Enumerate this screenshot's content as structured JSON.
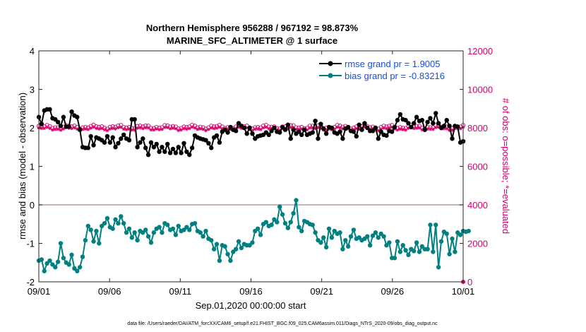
{
  "chart_data": {
    "type": "line",
    "title_line1": "Northern Hemisphere 956288 / 967192 = 98.873%",
    "title_line2": "MARINE_SFC_ALTIMETER @ 1 surface",
    "xlabel": "Sep.01,2020 00:00:00 start",
    "ylabel_left": "rmse and bias (model - observation)",
    "ylabel_right": "# of obs: o=possible; *=evaluated",
    "x_ticks": [
      "09/01",
      "09/06",
      "09/11",
      "09/16",
      "09/21",
      "09/26",
      "10/01"
    ],
    "x_range": [
      0,
      30
    ],
    "y_left_ticks": [
      "-2",
      "-1",
      "0",
      "1",
      "2",
      "3",
      "4"
    ],
    "y_left_range": [
      -2,
      4
    ],
    "y_right_ticks": [
      "0",
      "2000",
      "4000",
      "6000",
      "8000",
      "10000",
      "12000"
    ],
    "y_right_range": [
      0,
      12000
    ],
    "legend": [
      "rmse grand pr = 1.9005",
      "bias grand pr = -0.83216"
    ],
    "colors": {
      "rmse": "#000000",
      "bias": "#008080",
      "obs": "#d6006b",
      "zero": "#b09a9a"
    },
    "rmse": [
      2.28,
      2.1,
      2.45,
      2.48,
      2.48,
      2.25,
      2.22,
      2.15,
      2.05,
      2.28,
      2.03,
      2.03,
      2.42,
      2.32,
      2.28,
      1.95,
      1.5,
      1.48,
      1.48,
      1.78,
      1.55,
      1.75,
      1.72,
      1.68,
      1.62,
      1.78,
      1.62,
      1.75,
      1.5,
      1.6,
      1.72,
      1.82,
      1.72,
      1.68,
      2.22,
      2.22,
      1.5,
      1.62,
      1.72,
      1.48,
      1.3,
      1.62,
      1.5,
      1.58,
      1.38,
      1.5,
      1.38,
      1.58,
      1.35,
      1.45,
      1.35,
      1.5,
      1.35,
      1.6,
      1.38,
      1.3,
      1.48,
      1.8,
      1.75,
      1.72,
      1.7,
      1.68,
      1.6,
      1.48,
      1.75,
      1.8,
      1.62,
      1.9,
      1.95,
      1.88,
      2.02,
      1.95,
      1.92,
      2.12,
      2.05,
      2.0,
      1.85,
      2.0,
      1.85,
      1.72,
      1.78,
      1.8,
      1.82,
      1.88,
      1.82,
      1.92,
      2.0,
      1.9,
      1.88,
      2.02,
      1.95,
      2.08,
      1.72,
      1.95,
      1.85,
      1.9,
      1.82,
      1.95,
      1.82,
      1.85,
      1.88,
      2.18,
      1.72,
      2.1,
      1.98,
      1.85,
      2.02,
      2.0,
      1.88,
      1.85,
      1.9,
      1.72,
      1.98,
      2.02,
      1.92,
      1.9,
      1.78,
      2.08,
      1.95,
      2.12,
      2.0,
      1.92,
      1.92,
      2.0,
      1.72,
      1.9,
      1.82,
      1.8,
      1.92,
      1.9,
      2.02,
      2.2,
      2.35,
      2.22,
      2.2,
      2.12,
      2.02,
      2.12,
      2.28,
      2.18,
      2.2,
      1.95,
      2.15,
      2.25,
      2.12,
      2.38,
      2.12,
      2.0,
      2.05,
      2.2,
      2.05,
      1.72,
      2.05,
      2.03,
      1.62,
      1.65
    ],
    "bias": [
      -1.45,
      -1.42,
      -1.72,
      -1.52,
      -1.45,
      -1.55,
      -1.62,
      -1.48,
      -1.0,
      -1.38,
      -1.5,
      -1.55,
      -1.3,
      -1.65,
      -1.72,
      -1.62,
      -1.35,
      -0.92,
      -0.55,
      -0.65,
      -0.95,
      -0.68,
      -1.0,
      -0.55,
      -0.48,
      -0.35,
      -0.58,
      -0.62,
      -0.38,
      -0.48,
      -0.3,
      -0.48,
      -0.72,
      -0.62,
      -0.85,
      -0.72,
      -0.92,
      -0.68,
      -0.72,
      -0.65,
      -0.82,
      -0.98,
      -0.72,
      -0.62,
      -0.58,
      -0.72,
      -0.48,
      -0.52,
      -0.65,
      -0.62,
      -0.78,
      -0.55,
      -0.68,
      -0.65,
      -0.58,
      -0.65,
      -0.5,
      -0.48,
      -0.68,
      -0.72,
      -0.82,
      -0.68,
      -0.88,
      -0.92,
      -1.15,
      -1.02,
      -1.45,
      -1.05,
      -1.08,
      -1.28,
      -1.45,
      -1.22,
      -1.15,
      -0.95,
      -1.12,
      -1.02,
      -1.05,
      -1.05,
      -0.98,
      -0.68,
      -0.62,
      -0.78,
      -0.5,
      -0.45,
      -0.55,
      -0.52,
      -0.38,
      -0.45,
      -0.05,
      -0.25,
      -0.48,
      -0.6,
      -0.45,
      -0.22,
      0.12,
      -0.58,
      -0.68,
      -0.42,
      -0.45,
      -0.5,
      -0.52,
      -0.72,
      -0.92,
      -0.98,
      -0.85,
      -1.1,
      -0.62,
      -0.85,
      -0.68,
      -0.75,
      -0.72,
      -1.15,
      -0.92,
      -1.08,
      -0.82,
      -0.65,
      -0.88,
      -0.85,
      -0.92,
      -0.88,
      -0.82,
      -1.05,
      -0.8,
      -0.72,
      -0.85,
      -0.75,
      -0.82,
      -1.05,
      -0.98,
      -1.38,
      -1.38,
      -0.95,
      -1.22,
      -1.05,
      -1.18,
      -1.3,
      -1.15,
      -1.2,
      -0.98,
      -1.22,
      -1.08,
      -1.15,
      -1.15,
      -0.52,
      -1.22,
      -0.52,
      -1.62,
      -0.95,
      -0.7,
      -0.75,
      -1.28,
      -0.88,
      -1.22,
      -0.72,
      -0.78,
      -0.68,
      -0.7,
      -0.68
    ],
    "obs_possible_mean": 8050,
    "obs_evaluated_mean": 7950,
    "obs_evaluated_end": 0
  },
  "footnote": "data file: /Users/raeder/DAI/ATM_forcXX/CAM6_setup/f.e21.FHIST_BGC.f09_025.CAM6assim.011/Diags_NTrS_2020-09/obs_diag_output.nc"
}
